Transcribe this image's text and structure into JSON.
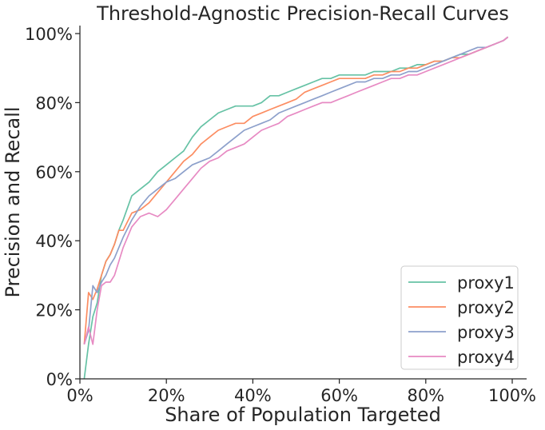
{
  "chart_data": {
    "type": "line",
    "title": "Threshold-Agnostic Precision-Recall Curves",
    "xlabel": "Share of Population Targeted",
    "ylabel": "Precision and Recall",
    "xlim": [
      0,
      100
    ],
    "ylim": [
      0,
      100
    ],
    "x_ticks": [
      "0%",
      "20%",
      "40%",
      "60%",
      "80%",
      "100%"
    ],
    "y_ticks": [
      "0%",
      "20%",
      "40%",
      "60%",
      "80%",
      "100%"
    ],
    "grid": false,
    "legend_position": "lower-right",
    "series": [
      {
        "name": "proxy1",
        "color": "#66c2a5",
        "x": [
          1,
          2,
          3,
          4,
          5,
          6,
          7,
          8,
          9,
          10,
          12,
          14,
          16,
          18,
          20,
          22,
          24,
          26,
          28,
          30,
          32,
          34,
          36,
          38,
          40,
          42,
          44,
          46,
          48,
          50,
          52,
          54,
          56,
          58,
          60,
          62,
          64,
          66,
          68,
          70,
          72,
          74,
          76,
          78,
          80,
          82,
          84,
          86,
          88,
          90,
          92,
          94,
          96,
          98,
          99
        ],
        "y": [
          0,
          10,
          18,
          22,
          30,
          34,
          36,
          39,
          43,
          46,
          53,
          55,
          57,
          60,
          62,
          64,
          66,
          70,
          73,
          75,
          77,
          78,
          79,
          79,
          79,
          80,
          82,
          82,
          83,
          84,
          85,
          86,
          87,
          87,
          88,
          88,
          88,
          88,
          89,
          89,
          89,
          90,
          90,
          91,
          91,
          92,
          92,
          93,
          94,
          94,
          95,
          96,
          97,
          98,
          99
        ]
      },
      {
        "name": "proxy2",
        "color": "#fc8d62",
        "x": [
          1,
          2,
          3,
          4,
          5,
          6,
          7,
          8,
          9,
          10,
          12,
          14,
          16,
          18,
          20,
          22,
          24,
          26,
          28,
          30,
          32,
          34,
          36,
          38,
          40,
          42,
          44,
          46,
          48,
          50,
          52,
          54,
          56,
          58,
          60,
          62,
          64,
          66,
          68,
          70,
          72,
          74,
          76,
          78,
          80,
          82,
          84,
          86,
          88,
          90,
          92,
          94,
          96,
          98,
          99
        ],
        "y": [
          10,
          25,
          23,
          26,
          30,
          34,
          36,
          39,
          43,
          43,
          48,
          49,
          51,
          54,
          57,
          60,
          63,
          65,
          68,
          70,
          72,
          73,
          74,
          74,
          76,
          77,
          78,
          79,
          80,
          81,
          83,
          84,
          85,
          86,
          87,
          87,
          87,
          87,
          88,
          88,
          89,
          89,
          90,
          90,
          91,
          92,
          92,
          93,
          93,
          94,
          95,
          96,
          97,
          98,
          99
        ]
      },
      {
        "name": "proxy3",
        "color": "#8da0cb",
        "x": [
          1,
          2,
          3,
          4,
          5,
          6,
          7,
          8,
          9,
          10,
          12,
          14,
          16,
          18,
          20,
          22,
          24,
          26,
          28,
          30,
          32,
          34,
          36,
          38,
          40,
          42,
          44,
          46,
          48,
          50,
          52,
          54,
          56,
          58,
          60,
          62,
          64,
          66,
          68,
          70,
          72,
          74,
          76,
          78,
          80,
          82,
          84,
          86,
          88,
          90,
          92,
          94,
          96,
          98,
          99
        ],
        "y": [
          10,
          14,
          27,
          25,
          28,
          30,
          33,
          35,
          38,
          41,
          46,
          50,
          53,
          55,
          57,
          58,
          60,
          62,
          63,
          64,
          66,
          68,
          70,
          72,
          73,
          74,
          75,
          77,
          78,
          79,
          80,
          81,
          82,
          83,
          84,
          85,
          86,
          86,
          87,
          87,
          88,
          88,
          89,
          89,
          90,
          91,
          92,
          93,
          94,
          95,
          96,
          96,
          97,
          98,
          99
        ]
      },
      {
        "name": "proxy4",
        "color": "#e78ac3",
        "x": [
          1,
          2,
          3,
          4,
          5,
          6,
          7,
          8,
          9,
          10,
          12,
          14,
          16,
          18,
          20,
          22,
          24,
          26,
          28,
          30,
          32,
          34,
          36,
          38,
          40,
          42,
          44,
          46,
          48,
          50,
          52,
          54,
          56,
          58,
          60,
          62,
          64,
          66,
          68,
          70,
          72,
          74,
          76,
          78,
          80,
          82,
          84,
          86,
          88,
          90,
          92,
          94,
          96,
          98,
          99
        ],
        "y": [
          10,
          15,
          10,
          20,
          27,
          28,
          28,
          30,
          34,
          38,
          44,
          47,
          48,
          47,
          49,
          52,
          55,
          58,
          61,
          63,
          64,
          66,
          67,
          68,
          70,
          72,
          73,
          74,
          76,
          77,
          78,
          79,
          80,
          80,
          81,
          82,
          83,
          84,
          85,
          86,
          87,
          87,
          88,
          88,
          89,
          90,
          91,
          92,
          93,
          94,
          95,
          96,
          97,
          98,
          99
        ]
      }
    ]
  }
}
